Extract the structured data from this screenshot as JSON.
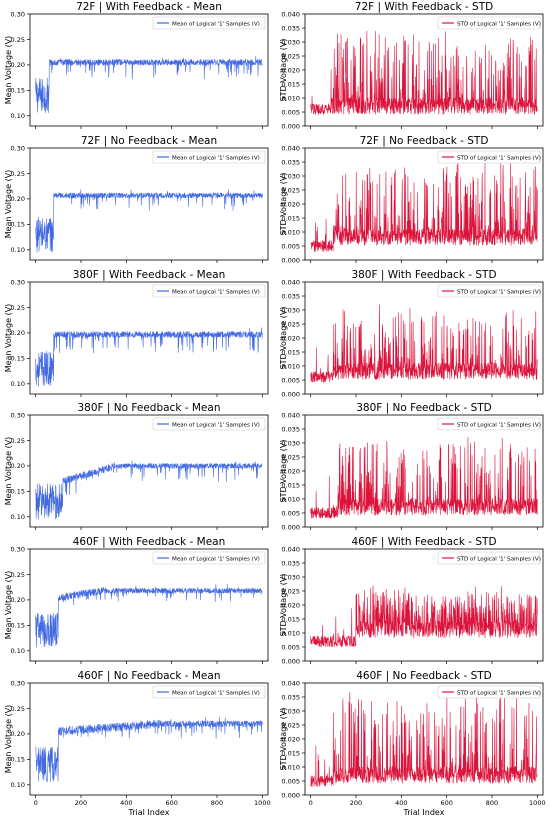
{
  "figure": {
    "xlabel_bottom": "Trial Index",
    "mean_ylabel": "Mean Voltage (V)",
    "std_ylabel": "STD Voltage (V)",
    "mean_color": "#4169e1",
    "std_color": "#dc143c"
  },
  "chart_data": [
    {
      "id": "p1",
      "type": "line",
      "title": "72F | With Feedback - Mean",
      "ylabel": "Mean Voltage (V)",
      "xlabel": "",
      "xlim": [
        -25,
        1025
      ],
      "ylim": [
        0.08,
        0.3
      ],
      "yticks": [
        0.1,
        0.15,
        0.2,
        0.25,
        0.3
      ],
      "xticks": [],
      "grid": false,
      "legend": "top-right",
      "series": [
        {
          "name": "Mean of Logical '1' Samples (V)",
          "color": "#4169e1",
          "kind": "mean",
          "start": 0.14,
          "ramp_start": 60,
          "ramp_end": 90,
          "plateau": 0.205,
          "noise": 0.006,
          "spike": 0.03
        }
      ]
    },
    {
      "id": "p2",
      "type": "line",
      "title": "72F | With Feedback - STD",
      "ylabel": "STD Voltage (V)",
      "xlabel": "",
      "xlim": [
        -25,
        1025
      ],
      "ylim": [
        0,
        0.04
      ],
      "yticks": [
        0.0,
        0.005,
        0.01,
        0.015,
        0.02,
        0.025,
        0.03,
        0.035,
        0.04
      ],
      "xticks": [],
      "grid": false,
      "legend": "top-right",
      "series": [
        {
          "name": "STD of Logical '1' Samples (V)",
          "color": "#dc143c",
          "kind": "std",
          "base_low": 0.004,
          "ramp_end": 90,
          "base": 0.006,
          "peak": 0.031
        }
      ]
    },
    {
      "id": "p3",
      "type": "line",
      "title": "72F | No Feedback - Mean",
      "ylabel": "Mean Voltage (V)",
      "xlabel": "",
      "xlim": [
        -25,
        1025
      ],
      "ylim": [
        0.08,
        0.3
      ],
      "yticks": [
        0.1,
        0.15,
        0.2,
        0.25,
        0.3
      ],
      "xticks": [],
      "grid": false,
      "legend": "top-right",
      "series": [
        {
          "name": "Mean of Logical '1' Samples (V)",
          "color": "#4169e1",
          "kind": "mean",
          "start": 0.13,
          "ramp_start": 80,
          "ramp_end": 100,
          "plateau": 0.207,
          "noise": 0.005,
          "spike": 0.025
        }
      ]
    },
    {
      "id": "p4",
      "type": "line",
      "title": "72F | No Feedback - STD",
      "ylabel": "STD Voltage (V)",
      "xlabel": "",
      "xlim": [
        -25,
        1025
      ],
      "ylim": [
        0,
        0.04
      ],
      "yticks": [
        0.0,
        0.005,
        0.01,
        0.015,
        0.02,
        0.025,
        0.03,
        0.035,
        0.04
      ],
      "xticks": [],
      "grid": false,
      "legend": "top-right",
      "series": [
        {
          "name": "STD of Logical '1' Samples (V)",
          "color": "#dc143c",
          "kind": "std",
          "base_low": 0.003,
          "ramp_end": 100,
          "base": 0.007,
          "peak": 0.033
        }
      ]
    },
    {
      "id": "p5",
      "type": "line",
      "title": "380F | With Feedback - Mean",
      "ylabel": "Mean Voltage (V)",
      "xlabel": "",
      "xlim": [
        -25,
        1025
      ],
      "ylim": [
        0.08,
        0.3
      ],
      "yticks": [
        0.1,
        0.15,
        0.2,
        0.25,
        0.3
      ],
      "xticks": [],
      "grid": false,
      "legend": "top-right",
      "series": [
        {
          "name": "Mean of Logical '1' Samples (V)",
          "color": "#4169e1",
          "kind": "mean",
          "start": 0.13,
          "ramp_start": 80,
          "ramp_end": 100,
          "plateau": 0.197,
          "noise": 0.006,
          "spike": 0.035
        }
      ]
    },
    {
      "id": "p6",
      "type": "line",
      "title": "380F | With Feedback - STD",
      "ylabel": "STD Voltage (V)",
      "xlabel": "",
      "xlim": [
        -25,
        1025
      ],
      "ylim": [
        0,
        0.04
      ],
      "yticks": [
        0.0,
        0.005,
        0.01,
        0.015,
        0.02,
        0.025,
        0.03,
        0.035,
        0.04
      ],
      "xticks": [],
      "grid": false,
      "legend": "top-right",
      "series": [
        {
          "name": "STD of Logical '1' Samples (V)",
          "color": "#dc143c",
          "kind": "std",
          "base_low": 0.004,
          "ramp_end": 100,
          "base": 0.007,
          "peak": 0.028
        }
      ]
    },
    {
      "id": "p7",
      "type": "line",
      "title": "380F | No Feedback - Mean",
      "ylabel": "Mean Voltage (V)",
      "xlabel": "",
      "xlim": [
        -25,
        1025
      ],
      "ylim": [
        0.08,
        0.3
      ],
      "yticks": [
        0.1,
        0.15,
        0.2,
        0.25,
        0.3
      ],
      "xticks": [],
      "grid": false,
      "legend": "top-right",
      "series": [
        {
          "name": "Mean of Logical '1' Samples (V)",
          "color": "#4169e1",
          "kind": "mean2",
          "start": 0.13,
          "ramp_start": 120,
          "ramp_end": 350,
          "mid": 0.17,
          "plateau": 0.2,
          "noise": 0.005,
          "spike": 0.03
        }
      ]
    },
    {
      "id": "p8",
      "type": "line",
      "title": "380F | No Feedback - STD",
      "ylabel": "STD Voltage (V)",
      "xlabel": "",
      "xlim": [
        -25,
        1025
      ],
      "ylim": [
        0,
        0.04
      ],
      "yticks": [
        0.0,
        0.005,
        0.01,
        0.015,
        0.02,
        0.025,
        0.03,
        0.035,
        0.04
      ],
      "xticks": [],
      "grid": false,
      "legend": "top-right",
      "series": [
        {
          "name": "STD of Logical '1' Samples (V)",
          "color": "#dc143c",
          "kind": "std",
          "base_low": 0.003,
          "ramp_end": 120,
          "base": 0.006,
          "peak": 0.029
        }
      ]
    },
    {
      "id": "p9",
      "type": "line",
      "title": "460F | With Feedback - Mean",
      "ylabel": "Mean Voltage (V)",
      "xlabel": "",
      "xlim": [
        -25,
        1025
      ],
      "ylim": [
        0.08,
        0.3
      ],
      "yticks": [
        0.1,
        0.15,
        0.2,
        0.25,
        0.3
      ],
      "xticks": [],
      "grid": false,
      "legend": "top-right",
      "series": [
        {
          "name": "Mean of Logical '1' Samples (V)",
          "color": "#4169e1",
          "kind": "mean2",
          "start": 0.14,
          "ramp_start": 100,
          "ramp_end": 300,
          "mid": 0.205,
          "plateau": 0.218,
          "noise": 0.005,
          "spike": 0.02
        }
      ]
    },
    {
      "id": "p10",
      "type": "line",
      "title": "460F | With Feedback - STD",
      "ylabel": "STD Voltage (V)",
      "xlabel": "",
      "xlim": [
        -25,
        1025
      ],
      "ylim": [
        0,
        0.04
      ],
      "yticks": [
        0.0,
        0.005,
        0.01,
        0.015,
        0.02,
        0.025,
        0.03,
        0.035,
        0.04
      ],
      "xticks": [],
      "grid": false,
      "legend": "top-right",
      "series": [
        {
          "name": "STD of Logical '1' Samples (V)",
          "color": "#dc143c",
          "kind": "stdband",
          "base_low": 0.005,
          "ramp_end": 200,
          "base": 0.01,
          "peak": 0.023
        }
      ]
    },
    {
      "id": "p11",
      "type": "line",
      "title": "460F | No Feedback - Mean",
      "ylabel": "Mean Voltage (V)",
      "xlabel": "Trial Index",
      "xlim": [
        -25,
        1025
      ],
      "ylim": [
        0.08,
        0.3
      ],
      "yticks": [
        0.1,
        0.15,
        0.2,
        0.25,
        0.3
      ],
      "xticks": [
        0,
        200,
        400,
        600,
        800,
        1000
      ],
      "grid": false,
      "legend": "top-right",
      "series": [
        {
          "name": "Mean of Logical '1' Samples (V)",
          "color": "#4169e1",
          "kind": "mean2",
          "start": 0.14,
          "ramp_start": 100,
          "ramp_end": 550,
          "mid": 0.205,
          "plateau": 0.22,
          "noise": 0.006,
          "spike": 0.025
        }
      ]
    },
    {
      "id": "p12",
      "type": "line",
      "title": "460F | No Feedback - STD",
      "ylabel": "STD Voltage (V)",
      "xlabel": "Trial Index",
      "xlim": [
        -25,
        1025
      ],
      "ylim": [
        0,
        0.04
      ],
      "yticks": [
        0.0,
        0.005,
        0.01,
        0.015,
        0.02,
        0.025,
        0.03,
        0.035,
        0.04
      ],
      "xticks": [
        0,
        200,
        400,
        600,
        800,
        1000
      ],
      "grid": false,
      "legend": "top-right",
      "series": [
        {
          "name": "STD of Logical '1' Samples (V)",
          "color": "#dc143c",
          "kind": "std",
          "base_low": 0.003,
          "ramp_end": 100,
          "base": 0.006,
          "peak": 0.034
        }
      ]
    }
  ]
}
